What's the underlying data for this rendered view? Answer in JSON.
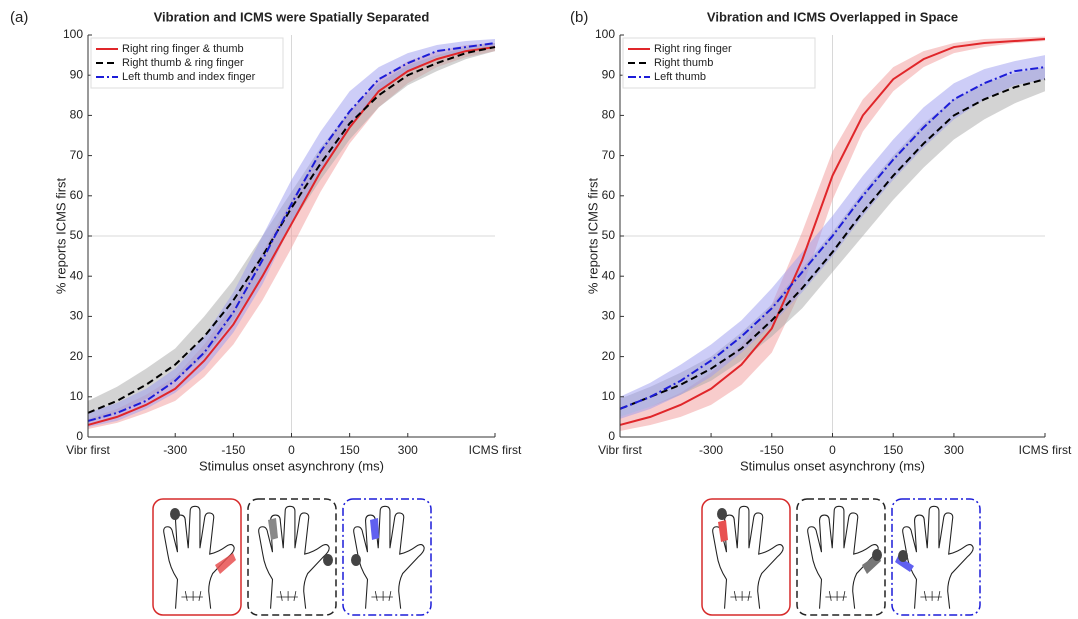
{
  "chart_data": [
    {
      "type": "line",
      "panel": "(a)",
      "title": "Vibration and ICMS were Spatially Separated",
      "xlabel": "Stimulus onset asynchrony (ms)",
      "ylabel": "% reports ICMS first",
      "x": [
        -525,
        -450,
        -375,
        -300,
        -225,
        -150,
        -75,
        0,
        75,
        150,
        225,
        300,
        375,
        450,
        525
      ],
      "xlim": [
        -525,
        525
      ],
      "xticks": [
        {
          "value": -525,
          "label": "Vibr first"
        },
        -300,
        -150,
        0,
        150,
        300,
        {
          "value": 525,
          "label": "ICMS first"
        }
      ],
      "ylim": [
        0,
        100
      ],
      "yticks": [
        0,
        10,
        20,
        30,
        40,
        50,
        60,
        70,
        80,
        90,
        100
      ],
      "reference_lines": {
        "x": 0,
        "y": 50
      },
      "legend": "upper left",
      "series": [
        {
          "name": "Right ring finger & thumb",
          "color": "#e0262a",
          "band_color": "#f29a9a",
          "dash": "solid",
          "values": [
            3,
            5,
            8,
            12,
            19,
            28,
            40,
            53,
            66,
            77,
            86,
            91,
            94,
            96,
            97
          ],
          "lower": [
            2,
            3.5,
            6,
            9,
            15,
            23,
            34,
            47,
            61,
            73,
            82,
            88,
            92,
            94.5,
            96
          ],
          "upper": [
            4.5,
            7,
            10.5,
            15,
            23,
            33,
            46,
            59,
            71,
            81,
            89,
            93.5,
            96,
            97.5,
            98
          ]
        },
        {
          "name": "Right thumb & ring finger",
          "color": "#000000",
          "band_color": "#a8a8a8",
          "dash": "dashed",
          "values": [
            6,
            9,
            13,
            18,
            25,
            34,
            45,
            57,
            68,
            78,
            85,
            90,
            93,
            95.5,
            97
          ],
          "lower": [
            3.5,
            6,
            9.5,
            14,
            20,
            29,
            40,
            53,
            64,
            74,
            82,
            87.5,
            91,
            94,
            96
          ],
          "upper": [
            9,
            12.5,
            17,
            22,
            30,
            39,
            50,
            61,
            72,
            81,
            88,
            92.5,
            95,
            97,
            98
          ]
        },
        {
          "name": "Left thumb and index finger",
          "color": "#1c1cd8",
          "band_color": "#9c9cf0",
          "dash": "dashdot",
          "values": [
            4,
            6,
            9,
            14,
            21,
            31,
            44,
            58,
            71,
            81,
            89,
            93,
            96,
            97,
            98
          ],
          "lower": [
            2.5,
            4,
            7,
            11,
            17,
            26,
            38,
            53,
            66,
            77,
            86,
            91,
            94.5,
            96,
            97
          ],
          "upper": [
            6,
            8.5,
            12,
            17,
            25,
            36,
            50,
            64,
            76,
            86,
            92,
            95.5,
            97.5,
            98.5,
            99
          ]
        }
      ]
    },
    {
      "type": "line",
      "panel": "(b)",
      "title": "Vibration and ICMS Overlapped in Space",
      "xlabel": "Stimulus onset asynchrony (ms)",
      "ylabel": "% reports ICMS first",
      "x": [
        -525,
        -450,
        -375,
        -300,
        -225,
        -150,
        -75,
        0,
        75,
        150,
        225,
        300,
        375,
        450,
        525
      ],
      "xlim": [
        -525,
        525
      ],
      "xticks": [
        {
          "value": -525,
          "label": "Vibr first"
        },
        -300,
        -150,
        0,
        150,
        300,
        {
          "value": 525,
          "label": "ICMS first"
        }
      ],
      "ylim": [
        0,
        100
      ],
      "yticks": [
        0,
        10,
        20,
        30,
        40,
        50,
        60,
        70,
        80,
        90,
        100
      ],
      "reference_lines": {
        "x": 0,
        "y": 50
      },
      "legend": "upper left",
      "series": [
        {
          "name": "Right ring finger",
          "color": "#e0262a",
          "band_color": "#f29a9a",
          "dash": "solid",
          "values": [
            3,
            5,
            8,
            12,
            18,
            27,
            44,
            65,
            80,
            89,
            94,
            97,
            98,
            98.5,
            99
          ],
          "lower": [
            1.5,
            3,
            5,
            8,
            13,
            21,
            37,
            59,
            76,
            86,
            92,
            95.5,
            97,
            98,
            98.5
          ],
          "upper": [
            5,
            7.5,
            11,
            16,
            23,
            33,
            51,
            71,
            84,
            92,
            96,
            98,
            99,
            99.3,
            99.6
          ]
        },
        {
          "name": "Right thumb",
          "color": "#000000",
          "band_color": "#a8a8a8",
          "dash": "dashed",
          "values": [
            7,
            10,
            13,
            17,
            22,
            29,
            37,
            46,
            56,
            65,
            73,
            80,
            84,
            87,
            89
          ],
          "lower": [
            5,
            7.5,
            10.5,
            14,
            19,
            25,
            32,
            41,
            50,
            59,
            67,
            74,
            79,
            83,
            86
          ],
          "upper": [
            9.5,
            12.5,
            16,
            20,
            26,
            33,
            42,
            51,
            61,
            70,
            78,
            84,
            88,
            90.5,
            92
          ]
        },
        {
          "name": "Left thumb",
          "color": "#1c1cd8",
          "band_color": "#9c9cf0",
          "dash": "dashdot",
          "values": [
            7,
            10,
            14,
            19,
            25,
            32,
            41,
            50,
            60,
            69,
            77,
            84,
            88,
            91,
            92
          ],
          "lower": [
            4.5,
            7,
            10.5,
            15,
            21,
            28,
            36,
            45,
            55,
            64,
            72,
            79,
            84,
            87.5,
            89
          ],
          "upper": [
            10,
            13.5,
            18,
            23,
            29,
            37,
            46,
            55,
            65,
            74,
            82,
            88,
            91.5,
            93.5,
            95
          ]
        }
      ]
    }
  ]
}
